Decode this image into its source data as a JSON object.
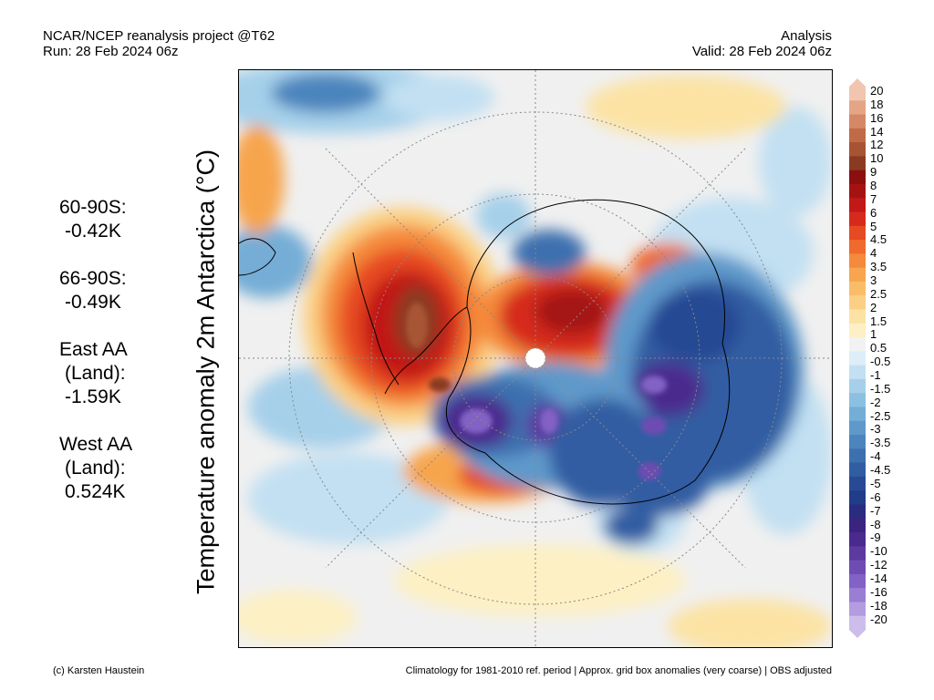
{
  "header": {
    "left_line1": "NCAR/NCEP reanalysis project @T62",
    "left_line2": "Run: 28 Feb 2024 06z",
    "right_line1": "Analysis",
    "right_line2": "Valid: 28 Feb 2024 06z"
  },
  "stats": [
    {
      "label": "60-90S:",
      "value": "-0.42K"
    },
    {
      "label": "66-90S:",
      "value": "-0.49K"
    },
    {
      "label": "East AA",
      "label2": "(Land):",
      "value": "-1.59K"
    },
    {
      "label": "West AA",
      "label2": "(Land):",
      "value": "0.524K"
    }
  ],
  "map_title": "Temperature anomaly 2m Antarctica (°C)",
  "colorbar": {
    "labels": [
      "20",
      "18",
      "16",
      "14",
      "12",
      "10",
      "9",
      "8",
      "7",
      "6",
      "5",
      "4.5",
      "4",
      "3.5",
      "3",
      "2.5",
      "2",
      "1.5",
      "1",
      "0.5",
      "-0.5",
      "-1",
      "-1.5",
      "-2",
      "-2.5",
      "-3",
      "-3.5",
      "-4",
      "-4.5",
      "-5",
      "-6",
      "-7",
      "-8",
      "-9",
      "-10",
      "-12",
      "-14",
      "-16",
      "-18",
      "-20"
    ],
    "colors": [
      "#f1c5b0",
      "#e4a585",
      "#d48866",
      "#c06a48",
      "#a75434",
      "#8b3a22",
      "#8b0f0f",
      "#a51212",
      "#c21818",
      "#d62a1c",
      "#e64a22",
      "#ef6a2c",
      "#f48a3b",
      "#f7a54e",
      "#f9bd68",
      "#fbd085",
      "#fce3a4",
      "#fdf0c4",
      "#f2f2f2",
      "#ddeef8",
      "#c2e0f2",
      "#a6d0ea",
      "#8cc0e0",
      "#74add6",
      "#5e99ca",
      "#4c85bd",
      "#3d70af",
      "#315da2",
      "#284a94",
      "#213c88",
      "#2a2c7f",
      "#3a2480",
      "#4b2a8e",
      "#5c3aa0",
      "#6e4cb3",
      "#8262c4",
      "#9a7ed3",
      "#b39ce0",
      "#ccbdeb"
    ]
  },
  "footer": {
    "left": "(c) Karsten Haustein",
    "right": "Climatology for 1981-2010 ref. period | Approx. grid box anomalies (very coarse) | OBS adjusted"
  }
}
